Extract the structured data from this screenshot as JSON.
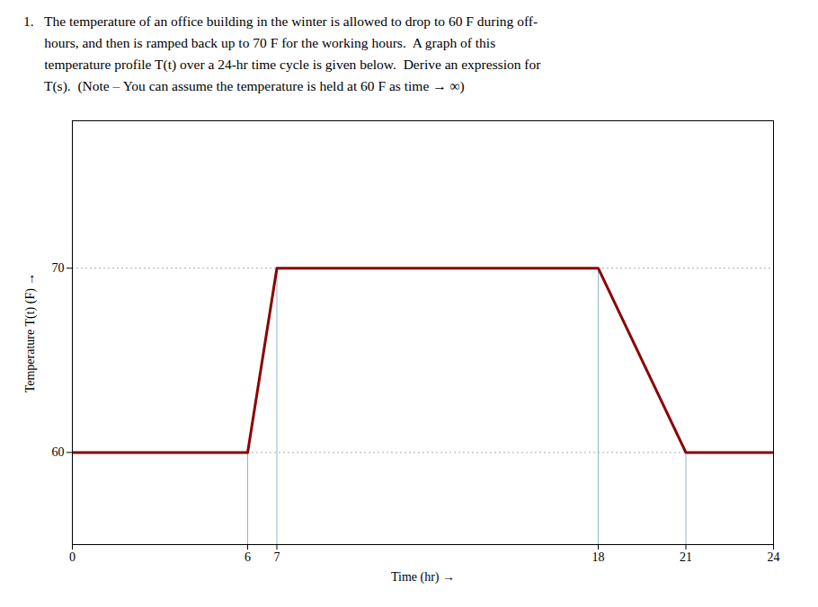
{
  "chart_data": {
    "type": "line",
    "title": [
      "1.   The temperature of an office building in the winter is allowed to drop to 60 F during off-",
      "      hours, and then is ramped back up to 70 F for the working hours.  A graph of this",
      "      temperature profile T(t) over a 24-hr time cycle is given below.  Derive an expression for",
      "      T(s).  (Note – You can assume the temperature is held at 60 F as time → ∞)"
    ],
    "x": [
      0,
      6,
      7,
      18,
      21,
      24
    ],
    "values": [
      60,
      60,
      70,
      70,
      60,
      60
    ],
    "color": "#8B0000",
    "vertical_lines": [
      {
        "x": 6,
        "y_bottom": 55,
        "y_top": 60
      },
      {
        "x": 7,
        "y_bottom": 55,
        "y_top": 70
      },
      {
        "x": 18,
        "y_bottom": 55,
        "y_top": 70
      },
      {
        "x": 21,
        "y_bottom": 55,
        "y_top": 60
      }
    ],
    "xlabel": "Time (hr)",
    "ylabel": "Temperature T(t) (F)",
    "xlim": [
      0,
      24
    ],
    "xticks": [
      0,
      6,
      7,
      18,
      21,
      24
    ],
    "ylim": [
      55,
      78
    ],
    "yticks": [
      60,
      70
    ],
    "grid": "y"
  }
}
